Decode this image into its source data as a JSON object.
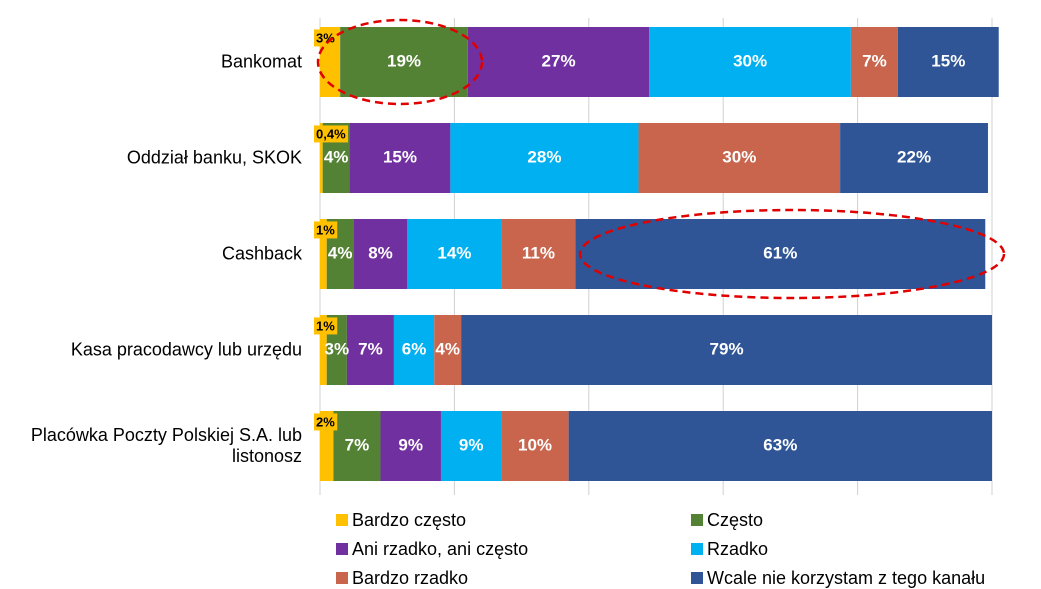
{
  "chart_data": {
    "type": "stacked-bar-horizontal",
    "categories": [
      "Bankomat",
      "Oddział banku, SKOK",
      "Cashback",
      "Kasa pracodawcy lub urzędu",
      "Placówka Poczty Polskiej S.A. lub listonosz"
    ],
    "xlim": [
      0,
      100
    ],
    "xticks": [
      0,
      20,
      40,
      60,
      80,
      100
    ],
    "grid": true,
    "series": [
      {
        "name": "Bardzo często",
        "color": "#ffc000",
        "values": [
          3,
          0.4,
          1,
          1,
          2
        ],
        "value_labels": [
          "3%",
          "0,4%",
          "1%",
          "1%",
          "2%"
        ]
      },
      {
        "name": "Często",
        "color": "#548235",
        "values": [
          19,
          4,
          4,
          3,
          7
        ],
        "value_labels": [
          "19%",
          "4%",
          "4%",
          "3%",
          "7%"
        ]
      },
      {
        "name": "Ani rzadko, ani często",
        "color": "#7030a0",
        "values": [
          27,
          15,
          8,
          7,
          9
        ],
        "value_labels": [
          "27%",
          "15%",
          "8%",
          "7%",
          "9%"
        ]
      },
      {
        "name": "Rzadko",
        "color": "#00b0f0",
        "values": [
          30,
          28,
          14,
          6,
          9
        ],
        "value_labels": [
          "30%",
          "28%",
          "14%",
          "6%",
          "9%"
        ]
      },
      {
        "name": "Bardzo rzadko",
        "color": "#c9654c",
        "values": [
          7,
          30,
          11,
          4,
          10
        ],
        "value_labels": [
          "7%",
          "30%",
          "11%",
          "4%",
          "10%"
        ]
      },
      {
        "name": "Wcale nie korzystam z tego kanału",
        "color": "#2f5597",
        "values": [
          15,
          22,
          61,
          79,
          63
        ],
        "value_labels": [
          "15%",
          "22%",
          "61%",
          "79%",
          "63%"
        ]
      }
    ]
  }
}
